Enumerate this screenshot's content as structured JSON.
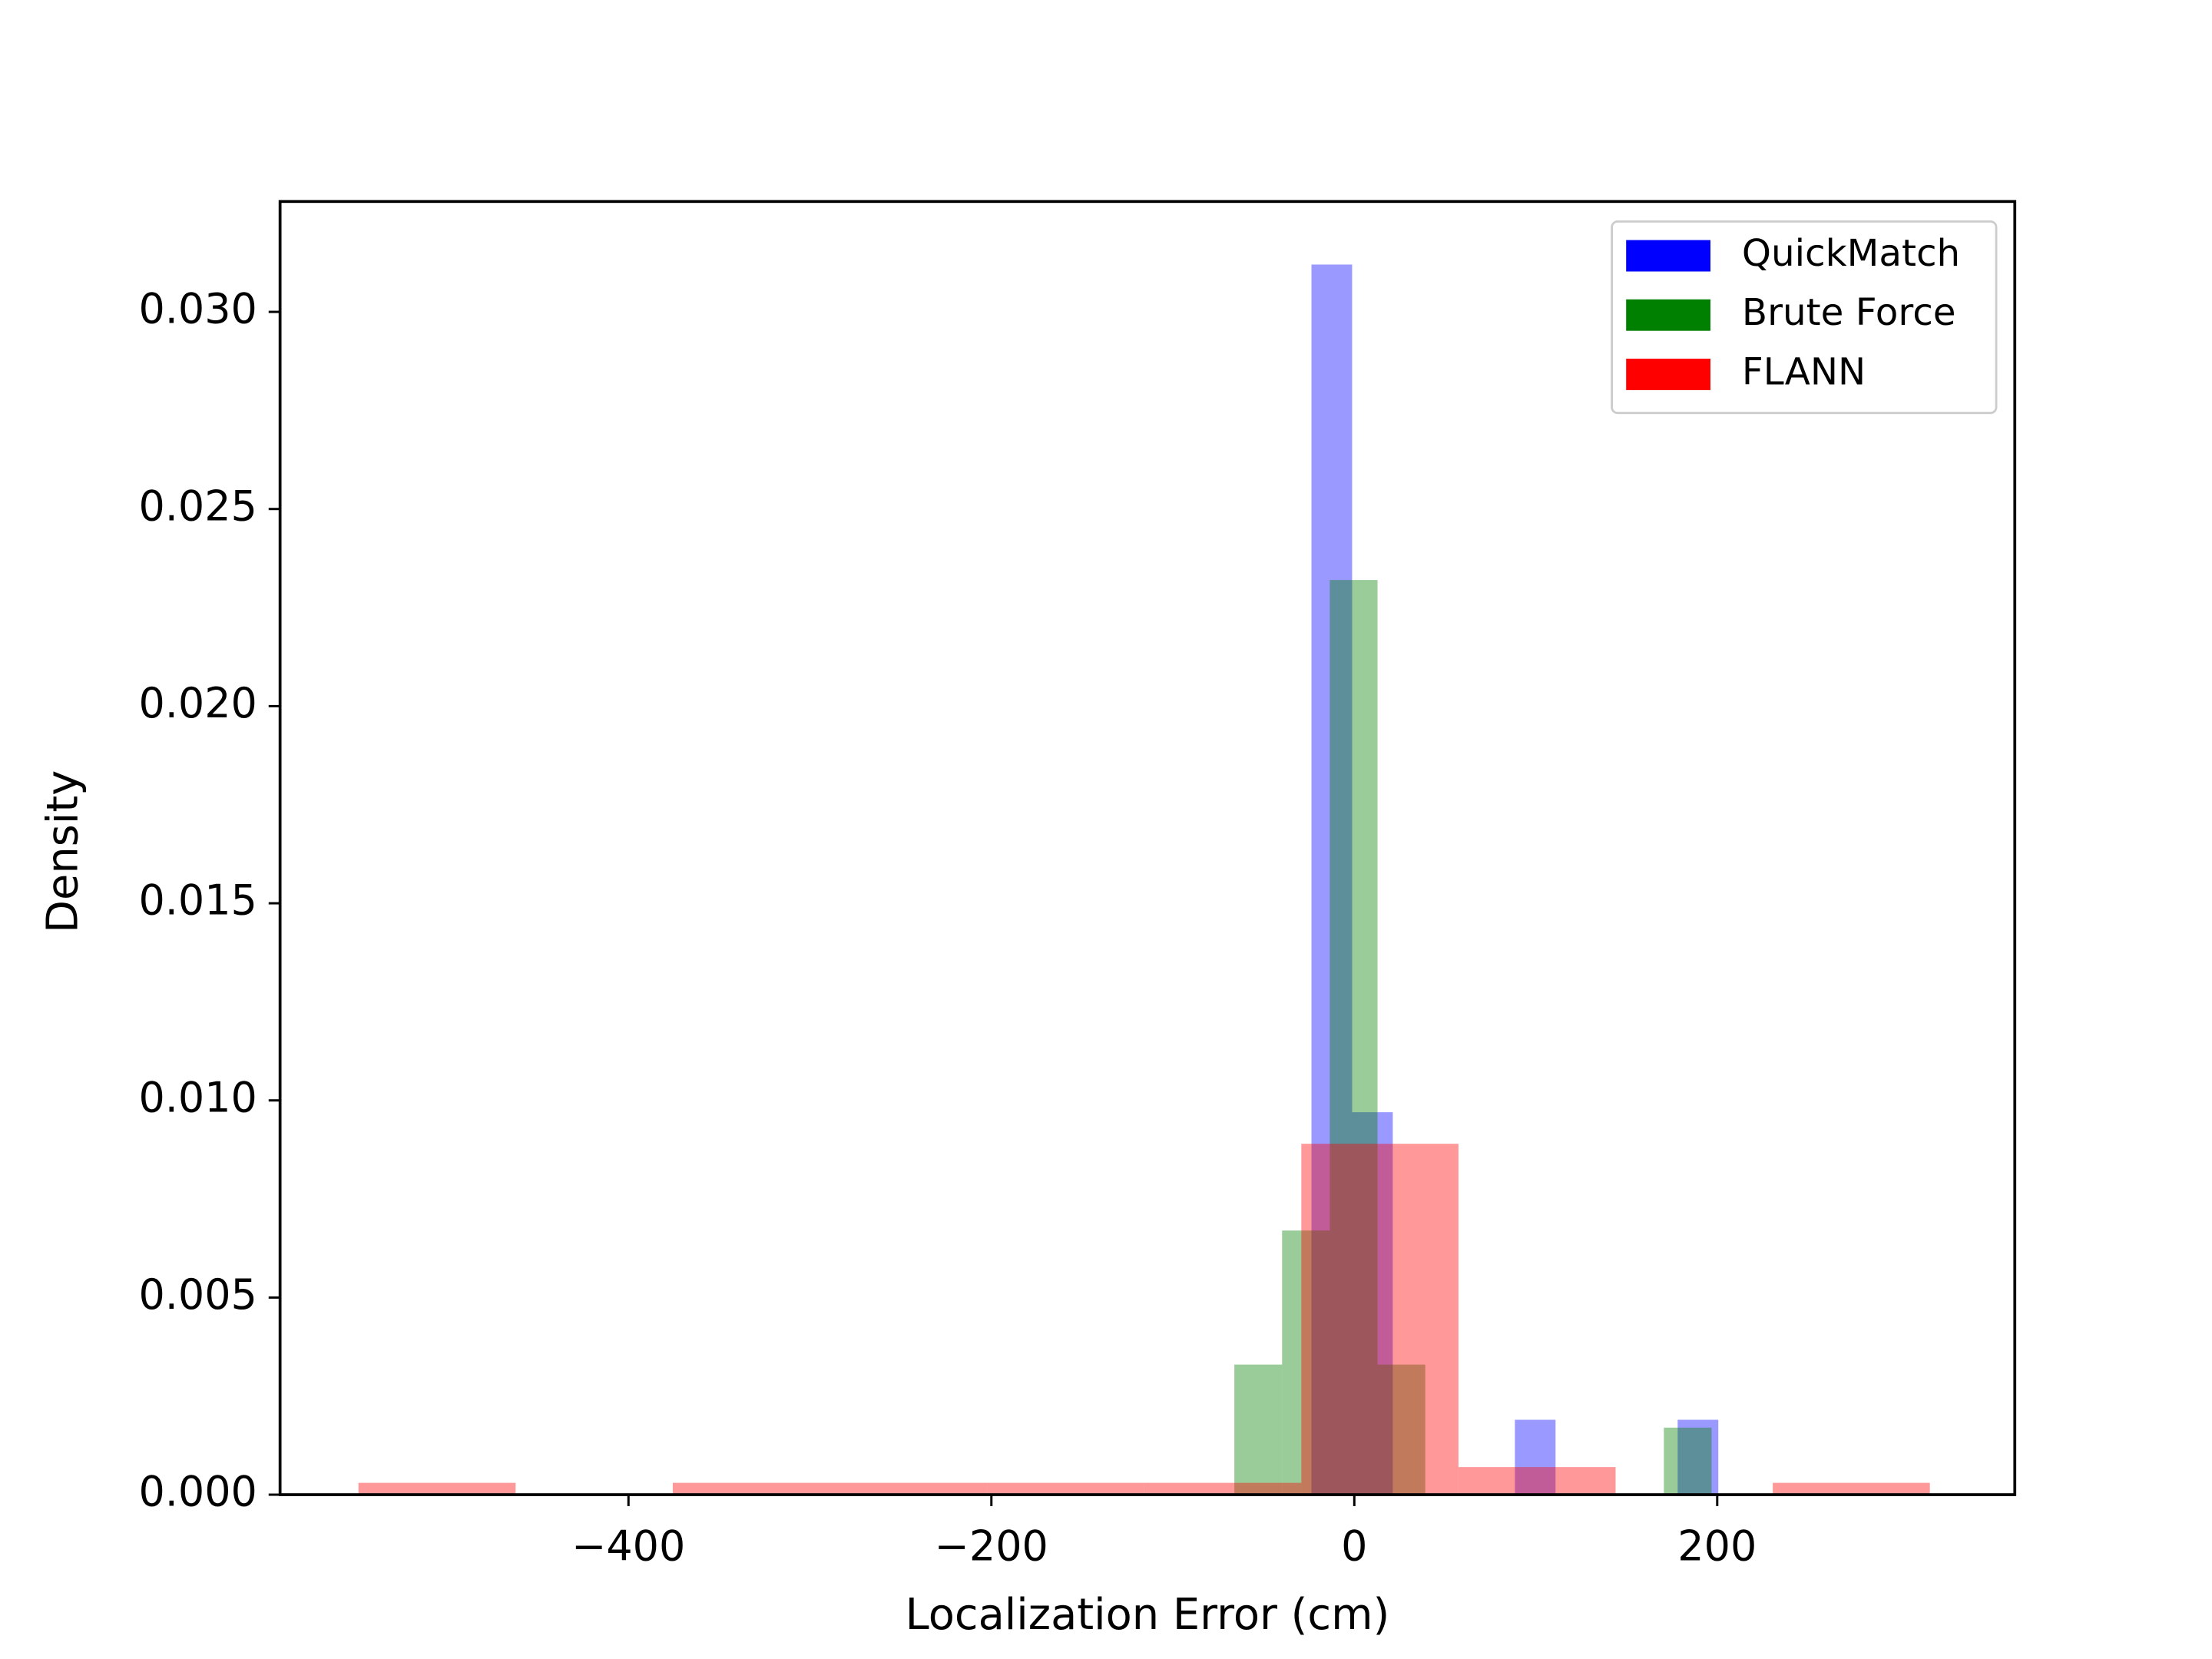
{
  "chart_data": {
    "type": "histogram",
    "xlabel": "Localization Error (cm)",
    "ylabel": "Density",
    "xlim": [
      -592,
      364
    ],
    "ylim": [
      0,
      0.0328
    ],
    "xticks": [
      {
        "value": -400,
        "label": "−400"
      },
      {
        "value": -200,
        "label": "−200"
      },
      0,
      200
    ],
    "yticks": [
      {
        "value": 0,
        "label": "0.000"
      },
      {
        "value": 0.005,
        "label": "0.005"
      },
      {
        "value": 0.01,
        "label": "0.010"
      },
      {
        "value": 0.015,
        "label": "0.015"
      },
      {
        "value": 0.02,
        "label": "0.020"
      },
      {
        "value": 0.025,
        "label": "0.025"
      },
      {
        "value": 0.03,
        "label": "0.030"
      }
    ],
    "alpha": 0.4,
    "legend": "upper right",
    "series": [
      {
        "name": "QuickMatch",
        "color": "#0000ff",
        "bins": [
          -23.6,
          -1.2,
          21.2,
          43.6,
          66.1,
          88.5,
          110.9,
          133.3,
          155.8,
          178.2,
          200.6
        ],
        "values": [
          0.0312,
          0.0097,
          0,
          0,
          0,
          0.0019,
          0,
          0,
          0,
          0.0019
        ]
      },
      {
        "name": "Brute Force",
        "color": "#008000",
        "bins": [
          -66.1,
          -39.8,
          -13.5,
          12.8,
          39.1,
          65.4,
          91.7,
          118,
          144.3,
          170.6,
          196.9
        ],
        "values": [
          0.0033,
          0.0067,
          0.0232,
          0.0033,
          0,
          0,
          0,
          0,
          0,
          0.0017
        ]
      },
      {
        "name": "FLANN",
        "color": "#ff0000",
        "bins": [
          -548.8,
          -462.2,
          -375.6,
          -289,
          -202.4,
          -115.8,
          -29.2,
          57.4,
          144,
          230.6,
          317.2
        ],
        "values": [
          0.0003,
          0,
          0.0003,
          0.0003,
          0.0003,
          0.0003,
          0.0089,
          0.0007,
          0,
          0.0003
        ]
      }
    ]
  }
}
